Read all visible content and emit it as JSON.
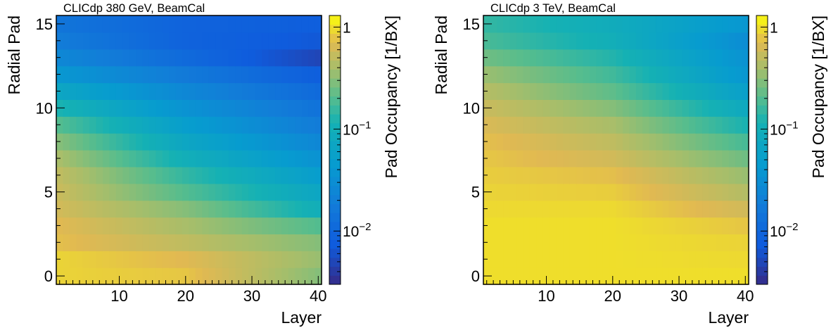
{
  "chart_data": [
    {
      "type": "heatmap",
      "title": "CLICdp   380 GeV, BeamCal",
      "xlabel": "Layer",
      "ylabel": "Radial Pad",
      "zlabel": "Pad Occupancy [1/BX]",
      "xlim": [
        0.5,
        40.5
      ],
      "ylim": [
        -0.5,
        15.5
      ],
      "zlim": [
        0.003,
        1.3
      ],
      "z_scale": "log",
      "x_ticks": [
        "10",
        "20",
        "30",
        "40"
      ],
      "y_ticks": [
        "0",
        "5",
        "10",
        "15"
      ],
      "z_ticks": [
        "1",
        "10^-1",
        "10^-2"
      ],
      "row_profile_description": "rows are radial pads 0 (bottom) to 15 (top); columns are layers 1-40",
      "rows": [
        {
          "pad": 0,
          "values": [
            0.9,
            0.8,
            0.3
          ]
        },
        {
          "pad": 1,
          "values": [
            0.9,
            0.7,
            0.35
          ]
        },
        {
          "pad": 2,
          "values": [
            0.75,
            0.5,
            0.3
          ]
        },
        {
          "pad": 3,
          "values": [
            0.7,
            0.4,
            0.2
          ]
        },
        {
          "pad": 4,
          "values": [
            0.6,
            0.3,
            0.1
          ]
        },
        {
          "pad": 5,
          "values": [
            0.55,
            0.2,
            0.07
          ]
        },
        {
          "pad": 6,
          "values": [
            0.5,
            0.15,
            0.05
          ]
        },
        {
          "pad": 7,
          "values": [
            0.4,
            0.1,
            0.035
          ]
        },
        {
          "pad": 8,
          "values": [
            0.3,
            0.07,
            0.025
          ]
        },
        {
          "pad": 9,
          "values": [
            0.2,
            0.05,
            0.018
          ]
        },
        {
          "pad": 10,
          "values": [
            0.12,
            0.035,
            0.014
          ]
        },
        {
          "pad": 11,
          "values": [
            0.07,
            0.025,
            0.011
          ]
        },
        {
          "pad": 12,
          "values": [
            0.04,
            0.017,
            0.008
          ]
        },
        {
          "pad": 13,
          "values": [
            0.025,
            0.011,
            0.005
          ]
        },
        {
          "pad": 14,
          "values": [
            0.018,
            0.009,
            0.007
          ]
        },
        {
          "pad": 15,
          "values": [
            0.015,
            0.009,
            0.008
          ]
        }
      ]
    },
    {
      "type": "heatmap",
      "title": "CLICdp   3 TeV, BeamCal",
      "xlabel": "Layer",
      "ylabel": "Radial Pad",
      "zlabel": "Pad Occupancy [1/BX]",
      "xlim": [
        0.5,
        40.5
      ],
      "ylim": [
        -0.5,
        15.5
      ],
      "zlim": [
        0.003,
        1.3
      ],
      "z_scale": "log",
      "x_ticks": [
        "10",
        "20",
        "30",
        "40"
      ],
      "y_ticks": [
        "0",
        "5",
        "10",
        "15"
      ],
      "z_ticks": [
        "1",
        "10^-1",
        "10^-2"
      ],
      "row_profile_description": "rows are radial pads 0 (bottom) to 15 (top); columns are layers 1-40",
      "rows": [
        {
          "pad": 0,
          "values": [
            1.0,
            1.0,
            1.0
          ]
        },
        {
          "pad": 1,
          "values": [
            1.0,
            1.0,
            0.95
          ]
        },
        {
          "pad": 2,
          "values": [
            1.0,
            1.0,
            0.9
          ]
        },
        {
          "pad": 3,
          "values": [
            1.0,
            1.0,
            0.8
          ]
        },
        {
          "pad": 4,
          "values": [
            0.95,
            0.95,
            0.6
          ]
        },
        {
          "pad": 5,
          "values": [
            0.9,
            0.85,
            0.45
          ]
        },
        {
          "pad": 6,
          "values": [
            0.85,
            0.75,
            0.35
          ]
        },
        {
          "pad": 7,
          "values": [
            0.8,
            0.6,
            0.25
          ]
        },
        {
          "pad": 8,
          "values": [
            0.75,
            0.5,
            0.18
          ]
        },
        {
          "pad": 9,
          "values": [
            0.65,
            0.4,
            0.12
          ]
        },
        {
          "pad": 10,
          "values": [
            0.55,
            0.3,
            0.08
          ]
        },
        {
          "pad": 11,
          "values": [
            0.45,
            0.22,
            0.055
          ]
        },
        {
          "pad": 12,
          "values": [
            0.35,
            0.17,
            0.04
          ]
        },
        {
          "pad": 13,
          "values": [
            0.25,
            0.13,
            0.035
          ]
        },
        {
          "pad": 14,
          "values": [
            0.18,
            0.1,
            0.03
          ]
        },
        {
          "pad": 15,
          "values": [
            0.15,
            0.09,
            0.04
          ]
        }
      ]
    }
  ]
}
